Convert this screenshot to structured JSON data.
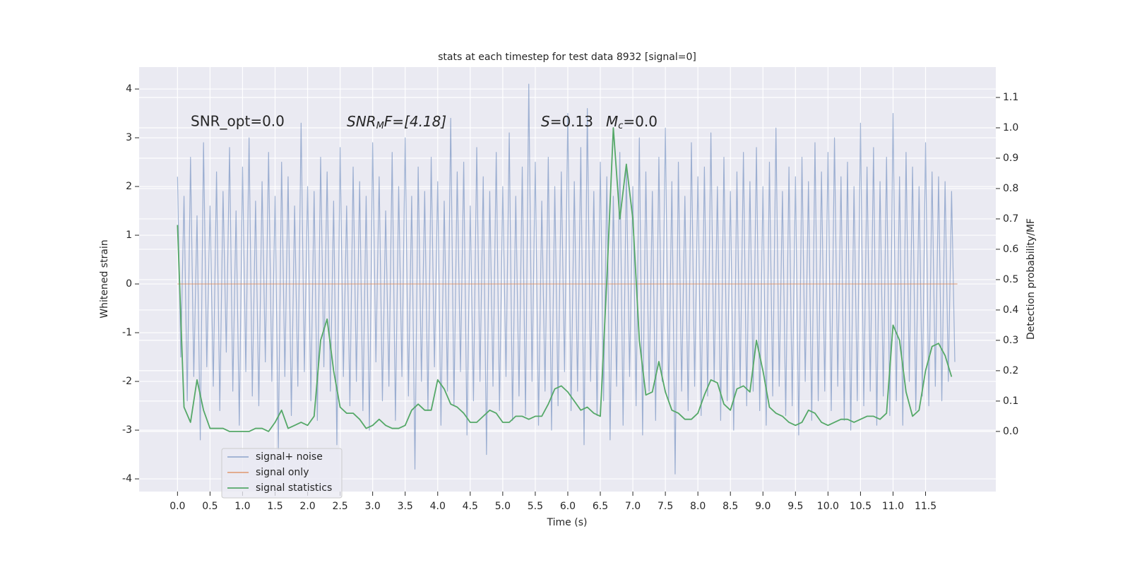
{
  "chart_data": {
    "type": "line",
    "title": "stats at each timestep for test data 8932 [signal=0]",
    "xlabel": "Time (s)",
    "ylabel": "Whitened strain",
    "y2label": "Detection probability/MF",
    "annotations": [
      {
        "text": "SNR_opt=0.0"
      },
      {
        "base": "SNR",
        "sub": "M",
        "tail": "F=[4.18]"
      },
      {
        "base": "S",
        "tail": "=0.13"
      },
      {
        "base": "M",
        "sub": "c",
        "tail": "=0.0"
      }
    ],
    "xlim": [
      -0.59,
      12.58
    ],
    "xticks": [
      {
        "value": 0,
        "label": "0.0"
      },
      0.5,
      {
        "value": 1,
        "label": "1.0"
      },
      1.5,
      {
        "value": 2,
        "label": "2.0"
      },
      2.5,
      {
        "value": 3,
        "label": "3.0"
      },
      3.5,
      {
        "value": 4,
        "label": "4.0"
      },
      4.5,
      {
        "value": 5,
        "label": "5.0"
      },
      5.5,
      {
        "value": 6,
        "label": "6.0"
      },
      6.5,
      {
        "value": 7,
        "label": "7.0"
      },
      7.5,
      {
        "value": 8,
        "label": "8.0"
      },
      8.5,
      {
        "value": 9,
        "label": "9.0"
      },
      9.5,
      {
        "value": 10,
        "label": "10.0"
      },
      10.5,
      {
        "value": 11,
        "label": "11.0"
      },
      11.5
    ],
    "ylim": [
      -4.26,
      4.45
    ],
    "yticks": [
      -4,
      -3,
      -2,
      -1,
      0,
      1,
      2,
      3,
      4
    ],
    "y2lim": [
      -0.198,
      1.2
    ],
    "y2ticks": [
      {
        "value": 0,
        "label": "0.0"
      },
      0.1,
      0.2,
      0.3,
      0.4,
      0.5,
      0.6,
      0.7,
      0.8,
      0.9,
      {
        "value": 1,
        "label": "1.0"
      },
      1.1
    ],
    "grid": true,
    "legend": "lower left",
    "series": [
      {
        "name": "signal+ noise",
        "color": "#4c72b0",
        "opacity": 0.5,
        "x": [
          0,
          0.05,
          0.1,
          0.15,
          0.2,
          0.25,
          0.3,
          0.35,
          0.4,
          0.45,
          0.5,
          0.55,
          0.6,
          0.65,
          0.7,
          0.75,
          0.8,
          0.85,
          0.9,
          0.95,
          1,
          1.05,
          1.1,
          1.15,
          1.2,
          1.25,
          1.3,
          1.35,
          1.4,
          1.45,
          1.5,
          1.55,
          1.6,
          1.65,
          1.7,
          1.75,
          1.8,
          1.85,
          1.9,
          1.95,
          2,
          2.05,
          2.1,
          2.15,
          2.2,
          2.25,
          2.3,
          2.35,
          2.4,
          2.45,
          2.5,
          2.55,
          2.6,
          2.65,
          2.7,
          2.75,
          2.8,
          2.85,
          2.9,
          2.95,
          3,
          3.05,
          3.1,
          3.15,
          3.2,
          3.25,
          3.3,
          3.35,
          3.4,
          3.45,
          3.5,
          3.55,
          3.6,
          3.65,
          3.7,
          3.75,
          3.8,
          3.85,
          3.9,
          3.95,
          4,
          4.05,
          4.1,
          4.15,
          4.2,
          4.25,
          4.3,
          4.35,
          4.4,
          4.45,
          4.5,
          4.55,
          4.6,
          4.65,
          4.7,
          4.75,
          4.8,
          4.85,
          4.9,
          4.95,
          5,
          5.05,
          5.1,
          5.15,
          5.2,
          5.25,
          5.3,
          5.35,
          5.4,
          5.45,
          5.5,
          5.55,
          5.6,
          5.65,
          5.7,
          5.75,
          5.8,
          5.85,
          5.9,
          5.95,
          6,
          6.05,
          6.1,
          6.15,
          6.2,
          6.25,
          6.3,
          6.35,
          6.4,
          6.45,
          6.5,
          6.55,
          6.6,
          6.65,
          6.7,
          6.75,
          6.8,
          6.85,
          6.9,
          6.95,
          7,
          7.05,
          7.1,
          7.15,
          7.2,
          7.25,
          7.3,
          7.35,
          7.4,
          7.45,
          7.5,
          7.55,
          7.6,
          7.65,
          7.7,
          7.75,
          7.8,
          7.85,
          7.9,
          7.95,
          8,
          8.05,
          8.1,
          8.15,
          8.2,
          8.25,
          8.3,
          8.35,
          8.4,
          8.45,
          8.5,
          8.55,
          8.6,
          8.65,
          8.7,
          8.75,
          8.8,
          8.85,
          8.9,
          8.95,
          9,
          9.05,
          9.1,
          9.15,
          9.2,
          9.25,
          9.3,
          9.35,
          9.4,
          9.45,
          9.5,
          9.55,
          9.6,
          9.65,
          9.7,
          9.75,
          9.8,
          9.85,
          9.9,
          9.95,
          10,
          10.05,
          10.1,
          10.15,
          10.2,
          10.25,
          10.3,
          10.35,
          10.4,
          10.45,
          10.5,
          10.55,
          10.6,
          10.65,
          10.7,
          10.75,
          10.8,
          10.85,
          10.9,
          10.95,
          11,
          11.05,
          11.1,
          11.15,
          11.2,
          11.25,
          11.3,
          11.35,
          11.4,
          11.45,
          11.5,
          11.55,
          11.6,
          11.65,
          11.7,
          11.75,
          11.8,
          11.85,
          11.9,
          11.95
        ],
        "values": [
          2.2,
          -1.5,
          1.8,
          -2.4,
          2.6,
          -1.9,
          1.4,
          -3.2,
          2.9,
          -1.7,
          1.6,
          -2.1,
          2.3,
          -2.6,
          1.9,
          -1.4,
          2.8,
          -2.2,
          1.5,
          -2.9,
          2.4,
          -1.8,
          3.0,
          -2.3,
          1.7,
          -2.5,
          2.1,
          -1.6,
          2.7,
          -2.0,
          1.8,
          -3.4,
          2.5,
          -1.9,
          2.2,
          -2.7,
          1.6,
          -2.1,
          3.3,
          -1.8,
          2.0,
          -2.4,
          1.9,
          -2.8,
          2.6,
          -1.7,
          2.3,
          -2.2,
          1.7,
          -3.3,
          2.8,
          -1.9,
          1.6,
          -2.5,
          2.4,
          -2.0,
          2.1,
          -2.6,
          1.8,
          -3.0,
          2.9,
          -1.6,
          2.2,
          -2.4,
          1.5,
          -2.1,
          2.7,
          -2.8,
          2.0,
          -1.9,
          3.0,
          -2.3,
          1.8,
          -3.8,
          2.4,
          -2.0,
          1.9,
          -2.6,
          2.6,
          -1.7,
          2.1,
          -2.9,
          1.7,
          -2.2,
          3.4,
          -2.5,
          2.3,
          -1.8,
          2.5,
          -3.1,
          1.6,
          -2.4,
          2.8,
          -2.0,
          2.2,
          -3.5,
          1.9,
          -2.1,
          2.7,
          -2.6,
          2.0,
          -1.9,
          3.1,
          -2.8,
          1.8,
          -2.3,
          2.4,
          -2.7,
          4.1,
          -2.0,
          2.5,
          -2.9,
          1.7,
          -2.2,
          2.6,
          -3.0,
          2.0,
          -2.5,
          2.3,
          -1.8,
          3.5,
          -2.6,
          2.1,
          -2.2,
          2.8,
          -3.3,
          3.6,
          -2.0,
          1.9,
          -2.7,
          2.5,
          -2.4,
          2.2,
          -3.2,
          1.8,
          -2.1,
          2.7,
          -2.9,
          2.4,
          -1.9,
          2.0,
          -2.5,
          3.0,
          -3.1,
          2.3,
          -2.2,
          1.9,
          -2.8,
          2.6,
          -2.0,
          3.2,
          -2.4,
          2.1,
          -3.9,
          2.5,
          -2.2,
          1.8,
          -2.6,
          2.9,
          -2.1,
          2.2,
          -2.7,
          2.4,
          -2.3,
          3.1,
          -2.0,
          2.0,
          -2.8,
          2.6,
          -2.4,
          1.9,
          -3.0,
          2.3,
          -2.1,
          2.7,
          -2.5,
          2.1,
          -2.2,
          2.8,
          -2.6,
          2.0,
          -2.9,
          2.5,
          -2.3,
          3.2,
          -2.1,
          1.9,
          -2.7,
          2.4,
          -2.5,
          2.2,
          -3.1,
          2.6,
          -2.0,
          2.1,
          -2.8,
          2.9,
          -2.4,
          2.3,
          -2.2,
          2.7,
          -2.6,
          3.0,
          -2.1,
          2.2,
          -2.8,
          2.5,
          -3.0,
          2.0,
          -2.4,
          3.3,
          -2.5,
          2.4,
          -2.2,
          2.8,
          -2.9,
          2.1,
          -2.3,
          2.6,
          -2.7,
          3.5,
          -2.4,
          2.2,
          -2.9,
          2.7,
          -2.0,
          2.4,
          -2.6,
          2.0,
          -2.3,
          2.9,
          -2.5,
          2.3,
          -2.1,
          2.2,
          -2.4,
          2.1,
          -2.0,
          1.9,
          -1.6
        ]
      },
      {
        "name": "signal only",
        "color": "#dd8452",
        "opacity": 0.7,
        "x": [
          0,
          11.99
        ],
        "values": [
          0,
          0
        ]
      },
      {
        "name": "signal statistics",
        "color": "#55a868",
        "opacity": 1,
        "axis": "y2",
        "x": [
          0,
          0.1,
          0.2,
          0.3,
          0.4,
          0.5,
          0.6,
          0.7,
          0.8,
          0.9,
          1,
          1.1,
          1.2,
          1.3,
          1.4,
          1.5,
          1.6,
          1.7,
          1.8,
          1.9,
          2,
          2.1,
          2.2,
          2.3,
          2.4,
          2.5,
          2.6,
          2.7,
          2.8,
          2.9,
          3,
          3.1,
          3.2,
          3.3,
          3.4,
          3.5,
          3.6,
          3.7,
          3.8,
          3.9,
          4,
          4.1,
          4.2,
          4.3,
          4.4,
          4.5,
          4.6,
          4.7,
          4.8,
          4.9,
          5,
          5.1,
          5.2,
          5.3,
          5.4,
          5.5,
          5.6,
          5.7,
          5.8,
          5.9,
          6,
          6.1,
          6.2,
          6.3,
          6.4,
          6.5,
          6.6,
          6.7,
          6.8,
          6.9,
          7,
          7.1,
          7.2,
          7.3,
          7.4,
          7.5,
          7.6,
          7.7,
          7.8,
          7.9,
          8,
          8.1,
          8.2,
          8.3,
          8.4,
          8.5,
          8.6,
          8.7,
          8.8,
          8.9,
          9,
          9.1,
          9.2,
          9.3,
          9.4,
          9.5,
          9.6,
          9.7,
          9.8,
          9.9,
          10,
          10.1,
          10.2,
          10.3,
          10.4,
          10.5,
          10.6,
          10.7,
          10.8,
          10.9,
          11,
          11.1,
          11.2,
          11.3,
          11.4,
          11.5,
          11.6,
          11.7,
          11.8,
          11.9
        ],
        "values": [
          0.68,
          0.08,
          0.03,
          0.17,
          0.07,
          0.01,
          0.01,
          0.01,
          0.0,
          0.0,
          0.0,
          0.0,
          0.01,
          0.01,
          0.0,
          0.03,
          0.07,
          0.01,
          0.02,
          0.03,
          0.02,
          0.05,
          0.3,
          0.37,
          0.2,
          0.08,
          0.06,
          0.06,
          0.04,
          0.01,
          0.02,
          0.04,
          0.02,
          0.01,
          0.01,
          0.02,
          0.07,
          0.09,
          0.07,
          0.07,
          0.17,
          0.14,
          0.09,
          0.08,
          0.06,
          0.03,
          0.03,
          0.05,
          0.07,
          0.06,
          0.03,
          0.03,
          0.05,
          0.05,
          0.04,
          0.05,
          0.05,
          0.09,
          0.14,
          0.15,
          0.13,
          0.1,
          0.07,
          0.08,
          0.06,
          0.05,
          0.5,
          1.0,
          0.7,
          0.88,
          0.7,
          0.3,
          0.12,
          0.13,
          0.23,
          0.13,
          0.07,
          0.06,
          0.04,
          0.04,
          0.06,
          0.12,
          0.17,
          0.16,
          0.09,
          0.07,
          0.14,
          0.15,
          0.13,
          0.3,
          0.2,
          0.08,
          0.06,
          0.05,
          0.03,
          0.02,
          0.03,
          0.07,
          0.06,
          0.03,
          0.02,
          0.03,
          0.04,
          0.04,
          0.03,
          0.04,
          0.05,
          0.05,
          0.04,
          0.06,
          0.35,
          0.3,
          0.13,
          0.05,
          0.07,
          0.2,
          0.28,
          0.29,
          0.25,
          0.18
        ]
      }
    ]
  }
}
